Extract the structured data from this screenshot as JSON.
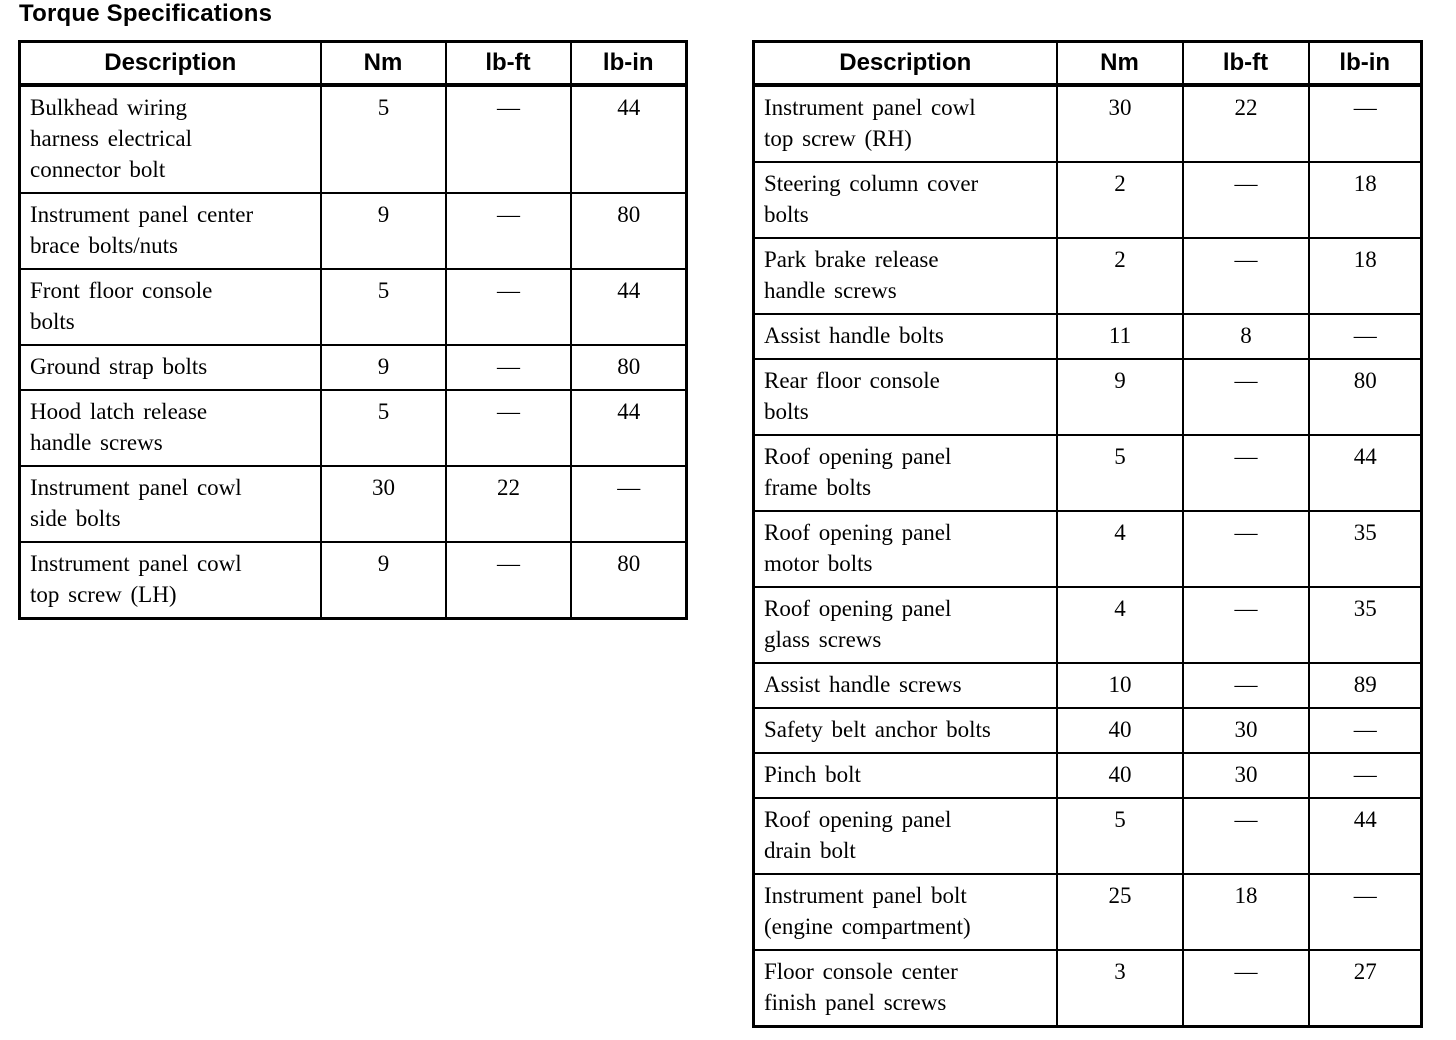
{
  "title": "Torque Specifications",
  "column_names": [
    "description",
    "nm",
    "lb-ft",
    "lb-in"
  ],
  "tables": [
    {
      "headers": [
        "Description",
        "Nm",
        "lb-ft",
        "lb-in"
      ],
      "rows": [
        [
          "Bulkhead wiring\nharness electrical\nconnector bolt",
          "5",
          "—",
          "44"
        ],
        [
          "Instrument panel center\nbrace bolts/nuts",
          "9",
          "—",
          "80"
        ],
        [
          "Front floor console\nbolts",
          "5",
          "—",
          "44"
        ],
        [
          "Ground strap bolts",
          "9",
          "—",
          "80"
        ],
        [
          "Hood latch release\nhandle screws",
          "5",
          "—",
          "44"
        ],
        [
          "Instrument panel cowl\nside bolts",
          "30",
          "22",
          "—"
        ],
        [
          "Instrument panel cowl\ntop screw (LH)",
          "9",
          "—",
          "80"
        ]
      ]
    },
    {
      "headers": [
        "Description",
        "Nm",
        "lb-ft",
        "lb-in"
      ],
      "rows": [
        [
          "Instrument panel cowl\ntop screw (RH)",
          "30",
          "22",
          "—"
        ],
        [
          "Steering column cover\nbolts",
          "2",
          "—",
          "18"
        ],
        [
          "Park brake release\nhandle screws",
          "2",
          "—",
          "18"
        ],
        [
          "Assist handle bolts",
          "11",
          "8",
          "—"
        ],
        [
          "Rear floor console\nbolts",
          "9",
          "—",
          "80"
        ],
        [
          "Roof opening panel\nframe bolts",
          "5",
          "—",
          "44"
        ],
        [
          "Roof opening panel\nmotor bolts",
          "4",
          "—",
          "35"
        ],
        [
          "Roof opening panel\nglass screws",
          "4",
          "—",
          "35"
        ],
        [
          "Assist handle screws",
          "10",
          "—",
          "89"
        ],
        [
          "Safety belt anchor bolts",
          "40",
          "30",
          "—"
        ],
        [
          "Pinch bolt",
          "40",
          "30",
          "—"
        ],
        [
          "Roof opening panel\ndrain bolt",
          "5",
          "—",
          "44"
        ],
        [
          "Instrument panel bolt\n(engine compartment)",
          "25",
          "18",
          "—"
        ],
        [
          "Floor console center\nfinish panel screws",
          "3",
          "—",
          "27"
        ]
      ]
    }
  ]
}
